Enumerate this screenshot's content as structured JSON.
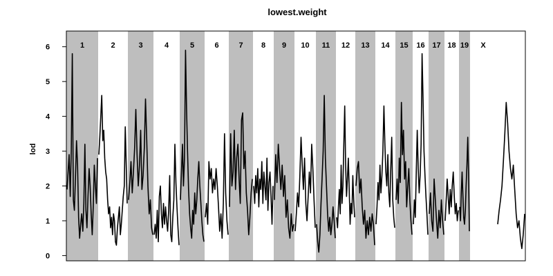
{
  "chart_data": {
    "type": "line",
    "title": "lowest.weight",
    "xlabel": "",
    "ylabel": "lod",
    "ylim": [
      -0.15,
      6.45
    ],
    "yticks": [
      0,
      1,
      2,
      3,
      4,
      5,
      6
    ],
    "grid": false,
    "legend": "none",
    "band_color": "#bebebe",
    "line_color": "#000000",
    "chromosomes": [
      {
        "name": "1",
        "shaded": true,
        "y": [
          1.9,
          2.4,
          2.9,
          1.7,
          3.0,
          5.8,
          1.6,
          1.3,
          2.2,
          3.3,
          2.6,
          1.1,
          0.5,
          0.9,
          1.2,
          0.7,
          1.5,
          3.2,
          1.3,
          0.8,
          1.7,
          2.5,
          2.0,
          1.2,
          0.6,
          1.4,
          2.6,
          2.0,
          1.5,
          2.8
        ]
      },
      {
        "name": "2",
        "shaded": false,
        "y": [
          2.9,
          3.4,
          4.0,
          4.6,
          3.3,
          3.6,
          2.8,
          2.4,
          2.2,
          1.6,
          1.2,
          1.4,
          0.8,
          1.1,
          0.6,
          1.2,
          1.0,
          0.4,
          0.3,
          0.8,
          1.1,
          1.4,
          0.6,
          0.9,
          1.3,
          1.7,
          2.0,
          3.7,
          2.6,
          1.5
        ]
      },
      {
        "name": "3",
        "shaded": true,
        "y": [
          1.6,
          2.1,
          2.7,
          1.8,
          2.4,
          3.1,
          4.2,
          2.9,
          2.0,
          2.6,
          3.6,
          1.9,
          2.3,
          3.1,
          4.5,
          3.3,
          2.0,
          1.2,
          1.6,
          0.8,
          0.6
        ]
      },
      {
        "name": "4",
        "shaded": false,
        "y": [
          0.6,
          0.9,
          0.5,
          1.3,
          0.4,
          1.7,
          2.0,
          1.2,
          0.8,
          1.5,
          0.9,
          1.4,
          1.0,
          0.7,
          1.3,
          2.3,
          0.6,
          0.4,
          1.1,
          1.6,
          3.2,
          2.1,
          1.4,
          0.8,
          0.3
        ]
      },
      {
        "name": "5",
        "shaded": true,
        "y": [
          1.6,
          2.4,
          3.2,
          2.0,
          2.8,
          5.9,
          4.2,
          3.0,
          1.9,
          1.2,
          0.8,
          0.5,
          1.3,
          0.9,
          1.8,
          1.2,
          1.6,
          2.2,
          2.7,
          2.0,
          1.5,
          1.0,
          0.6,
          0.4
        ]
      },
      {
        "name": "6",
        "shaded": false,
        "y": [
          1.1,
          1.5,
          0.9,
          2.7,
          2.2,
          2.5,
          1.8,
          2.2,
          1.9,
          2.5,
          2.0,
          1.4,
          0.7,
          1.2,
          0.5,
          1.5,
          3.5,
          1.8,
          1.0,
          0.6
        ]
      },
      {
        "name": "7",
        "shaded": true,
        "y": [
          1.4,
          3.5,
          2.0,
          2.4,
          3.6,
          1.9,
          2.8,
          3.2,
          2.2,
          1.5,
          3.9,
          4.1,
          2.5,
          3.0,
          1.8,
          1.3,
          0.6,
          1.1,
          1.8,
          2.2
        ]
      },
      {
        "name": "8",
        "shaded": false,
        "y": [
          2.0,
          1.5,
          2.3,
          1.8,
          2.5,
          1.4,
          2.2,
          1.9,
          2.7,
          1.5,
          2.4,
          2.0,
          1.6,
          2.8,
          1.3,
          2.1,
          2.4,
          1.7,
          0.9,
          2.0
        ]
      },
      {
        "name": "9",
        "shaded": true,
        "y": [
          1.6,
          2.9,
          2.1,
          3.2,
          2.5,
          1.9,
          2.6,
          1.7,
          2.3,
          1.1,
          1.6,
          0.8,
          0.5,
          1.2,
          0.7,
          0.9
        ]
      },
      {
        "name": "10",
        "shaded": false,
        "y": [
          0.7,
          1.2,
          1.8,
          1.4,
          2.3,
          3.4,
          2.6,
          1.9,
          2.8,
          1.5,
          1.0,
          1.7,
          2.4,
          1.8,
          3.2,
          2.5,
          1.6,
          0.8
        ]
      },
      {
        "name": "11",
        "shaded": true,
        "y": [
          0.9,
          0.4,
          0.1,
          0.6,
          1.5,
          2.2,
          3.0,
          4.6,
          2.8,
          2.0,
          1.2,
          0.7,
          1.1,
          0.6,
          0.9,
          1.4,
          1.0,
          0.5
        ]
      },
      {
        "name": "12",
        "shaded": false,
        "y": [
          1.1,
          0.8,
          1.4,
          1.9,
          1.2,
          2.6,
          1.5,
          2.0,
          3.2,
          4.3,
          2.6,
          1.7,
          2.2,
          2.8,
          1.9,
          0.9,
          1.5,
          1.2,
          2.3,
          1.6,
          1.1
        ]
      },
      {
        "name": "13",
        "shaded": true,
        "y": [
          2.0,
          2.5,
          2.7,
          1.8,
          2.2,
          1.4,
          0.9,
          1.3,
          0.5,
          1.0,
          0.6,
          1.1,
          0.7,
          1.2,
          0.9,
          0.3
        ]
      },
      {
        "name": "14",
        "shaded": false,
        "y": [
          0.9,
          1.4,
          2.1,
          1.6,
          2.6,
          1.8,
          2.3,
          3.0,
          4.3,
          3.2,
          2.4,
          2.0,
          2.9,
          1.8,
          1.4,
          2.5,
          3.4,
          1.6,
          1.1,
          0.8
        ]
      },
      {
        "name": "15",
        "shaded": true,
        "y": [
          1.6,
          2.2,
          1.5,
          2.8,
          2.1,
          4.4,
          2.9,
          3.6,
          2.2,
          2.7,
          1.4,
          2.0,
          2.5,
          1.6,
          1.0,
          0.6
        ]
      },
      {
        "name": "16",
        "shaded": false,
        "y": [
          0.9,
          1.6,
          1.1,
          2.4,
          3.6,
          2.5,
          1.8,
          2.3,
          3.2,
          5.8,
          4.5,
          3.0,
          2.3,
          1.7,
          1.2,
          0.6
        ]
      },
      {
        "name": "17",
        "shaded": true,
        "y": [
          1.2,
          1.8,
          1.0,
          0.7,
          2.2,
          1.6,
          1.0,
          0.5,
          1.3,
          0.8,
          1.6,
          1.0,
          0.6
        ]
      },
      {
        "name": "18",
        "shaded": false,
        "y": [
          1.0,
          1.6,
          2.2,
          1.7,
          1.2,
          1.9,
          1.4,
          2.0,
          2.4,
          1.7,
          1.2,
          1.5,
          1.0,
          1.3
        ]
      },
      {
        "name": "19",
        "shaded": true,
        "y": [
          1.4,
          1.0,
          1.8,
          2.4,
          1.7,
          1.1,
          0.9,
          1.3,
          2.0,
          2.6,
          3.4,
          2.4,
          0.7
        ]
      },
      {
        "name": "X",
        "shaded": false,
        "y": [
          0.9,
          1.3,
          1.6,
          2.0,
          2.7,
          3.5,
          4.4,
          3.8,
          3.0,
          2.5,
          2.2,
          2.6,
          1.9,
          1.2,
          0.8,
          1.0,
          0.5,
          0.2,
          0.6,
          1.2
        ]
      }
    ]
  }
}
